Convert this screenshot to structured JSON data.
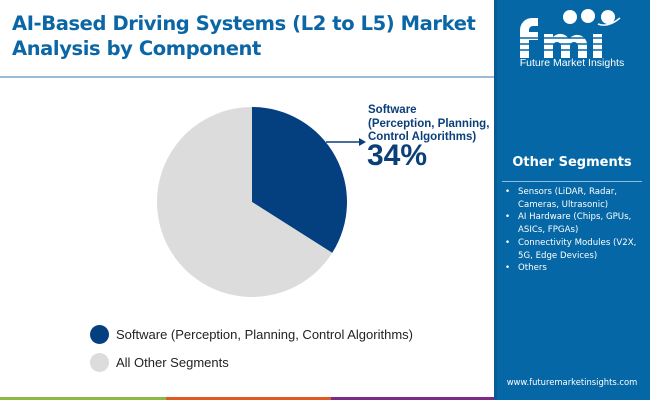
{
  "header": {
    "title_line1": "AI-Based Driving Systems (L2 to L5) Market",
    "title_line2": "Analysis by Component"
  },
  "brand": {
    "logo_letters": "fmi",
    "name": "Future Market Insights",
    "url": "www.futuremarketinsights.com",
    "colors": {
      "panel": "#0567a6",
      "title": "#0b66a6",
      "dark_blue": "#043f80",
      "grey": "#dcdcdc",
      "bar_green": "#8ab944",
      "bar_orange": "#e05a24",
      "bar_purple": "#7c2a86"
    }
  },
  "sidebar": {
    "title": "Other Segments",
    "items": [
      "Sensors (LiDAR, Radar, Cameras, Ultrasonic)",
      "AI Hardware (Chips, GPUs, ASICs, FPGAs)",
      "Connectivity Modules (V2X, 5G, Edge Devices)",
      "Others"
    ]
  },
  "callout": {
    "line1": "Software",
    "line2": "(Perception, Planning,",
    "line3": "Control Algorithms)",
    "percent": "34%"
  },
  "chart_data": {
    "type": "pie",
    "title": "AI-Based Driving Systems (L2 to L5) Market Analysis by Component",
    "slices": [
      {
        "label": "Software (Perception, Planning, Control Algorithms)",
        "value": 34,
        "color": "#043f80"
      },
      {
        "label": "All Other Segments",
        "value": 66,
        "color": "#dcdcdc"
      }
    ],
    "start_angle": "12 o'clock",
    "direction": "clockwise",
    "legend_position": "bottom-left"
  }
}
